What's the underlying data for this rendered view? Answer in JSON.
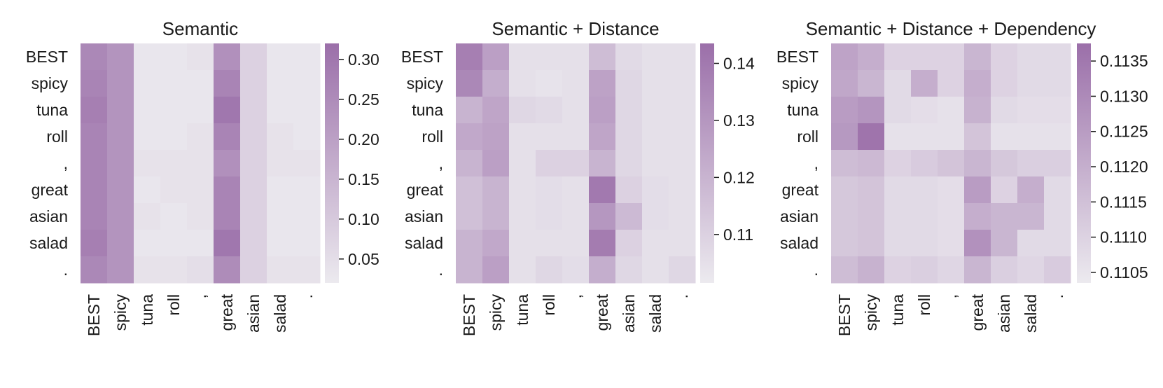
{
  "chart_data": [
    {
      "type": "heatmap",
      "title": "Semantic",
      "x_categories": [
        "BEST",
        "spicy",
        "tuna",
        "roll",
        ",",
        "great",
        "asian",
        "salad",
        "."
      ],
      "y_categories": [
        "BEST",
        "spicy",
        "tuna",
        "roll",
        ",",
        "great",
        "asian",
        "salad",
        "."
      ],
      "values": [
        [
          0.26,
          0.23,
          0.03,
          0.03,
          0.04,
          0.24,
          0.08,
          0.03,
          0.03
        ],
        [
          0.27,
          0.23,
          0.03,
          0.03,
          0.03,
          0.27,
          0.08,
          0.03,
          0.03
        ],
        [
          0.28,
          0.23,
          0.03,
          0.03,
          0.03,
          0.3,
          0.08,
          0.03,
          0.03
        ],
        [
          0.27,
          0.23,
          0.03,
          0.03,
          0.04,
          0.27,
          0.08,
          0.04,
          0.03
        ],
        [
          0.27,
          0.23,
          0.04,
          0.04,
          0.04,
          0.24,
          0.08,
          0.04,
          0.04
        ],
        [
          0.27,
          0.23,
          0.03,
          0.04,
          0.04,
          0.27,
          0.08,
          0.03,
          0.03
        ],
        [
          0.27,
          0.23,
          0.04,
          0.03,
          0.04,
          0.27,
          0.08,
          0.03,
          0.03
        ],
        [
          0.28,
          0.23,
          0.03,
          0.03,
          0.03,
          0.3,
          0.08,
          0.03,
          0.03
        ],
        [
          0.26,
          0.23,
          0.04,
          0.04,
          0.05,
          0.25,
          0.08,
          0.04,
          0.04
        ]
      ],
      "colorbar": {
        "min": 0.02,
        "max": 0.32,
        "ticks": [
          "0.05",
          "0.10",
          "0.15",
          "0.20",
          "0.25",
          "0.30"
        ]
      }
    },
    {
      "type": "heatmap",
      "title": "Semantic + Distance",
      "x_categories": [
        "BEST",
        "spicy",
        "tuna",
        "roll",
        ",",
        "great",
        "asian",
        "salad",
        "."
      ],
      "y_categories": [
        "BEST",
        "spicy",
        "tuna",
        "roll",
        ",",
        "great",
        "asian",
        "salad",
        "."
      ],
      "values": [
        [
          0.138,
          0.127,
          0.105,
          0.105,
          0.105,
          0.117,
          0.107,
          0.105,
          0.105
        ],
        [
          0.135,
          0.122,
          0.105,
          0.104,
          0.105,
          0.126,
          0.108,
          0.105,
          0.105
        ],
        [
          0.12,
          0.125,
          0.108,
          0.107,
          0.105,
          0.127,
          0.108,
          0.105,
          0.105
        ],
        [
          0.124,
          0.126,
          0.105,
          0.105,
          0.105,
          0.125,
          0.108,
          0.105,
          0.105
        ],
        [
          0.12,
          0.127,
          0.105,
          0.11,
          0.11,
          0.12,
          0.108,
          0.105,
          0.105
        ],
        [
          0.116,
          0.12,
          0.105,
          0.106,
          0.105,
          0.14,
          0.11,
          0.106,
          0.105
        ],
        [
          0.116,
          0.12,
          0.105,
          0.106,
          0.105,
          0.13,
          0.118,
          0.106,
          0.105
        ],
        [
          0.12,
          0.124,
          0.105,
          0.105,
          0.105,
          0.139,
          0.11,
          0.105,
          0.105
        ],
        [
          0.12,
          0.127,
          0.105,
          0.108,
          0.106,
          0.122,
          0.108,
          0.105,
          0.108
        ]
      ],
      "colorbar": {
        "min": 0.1015,
        "max": 0.1435,
        "ticks": [
          "0.11",
          "0.12",
          "0.13",
          "0.14"
        ]
      }
    },
    {
      "type": "heatmap",
      "title": "Semantic + Distance + Dependency",
      "x_categories": [
        "BEST",
        "spicy",
        "tuna",
        "roll",
        ",",
        "great",
        "asian",
        "salad",
        "."
      ],
      "y_categories": [
        "BEST",
        "spicy",
        "tuna",
        "roll",
        ",",
        "great",
        "asian",
        "salad",
        "."
      ],
      "values": [
        [
          0.1123,
          0.112,
          0.111,
          0.111,
          0.111,
          0.1118,
          0.111,
          0.1108,
          0.1108
        ],
        [
          0.1122,
          0.1118,
          0.1108,
          0.112,
          0.111,
          0.112,
          0.111,
          0.1108,
          0.1108
        ],
        [
          0.1125,
          0.1127,
          0.1108,
          0.1107,
          0.1106,
          0.1119,
          0.1108,
          0.1107,
          0.1107
        ],
        [
          0.1126,
          0.1136,
          0.1106,
          0.1106,
          0.1106,
          0.1114,
          0.1106,
          0.1106,
          0.1106
        ],
        [
          0.1116,
          0.1117,
          0.111,
          0.1112,
          0.1114,
          0.1118,
          0.1113,
          0.1111,
          0.1111
        ],
        [
          0.1113,
          0.1114,
          0.1108,
          0.1108,
          0.1107,
          0.1125,
          0.111,
          0.112,
          0.1108
        ],
        [
          0.1113,
          0.1114,
          0.1108,
          0.1108,
          0.1107,
          0.112,
          0.1118,
          0.1118,
          0.1108
        ],
        [
          0.1113,
          0.1114,
          0.1108,
          0.1108,
          0.1107,
          0.1128,
          0.1118,
          0.1108,
          0.1108
        ],
        [
          0.1116,
          0.1119,
          0.111,
          0.1111,
          0.1109,
          0.1118,
          0.1111,
          0.1109,
          0.1112
        ]
      ],
      "colorbar": {
        "min": 0.11035,
        "max": 0.11375,
        "ticks": [
          "0.1105",
          "0.1110",
          "0.1115",
          "0.1120",
          "0.1125",
          "0.1130",
          "0.1135"
        ]
      }
    }
  ],
  "colors": {
    "low": "#ECEAEF",
    "high": "#9B6FA9",
    "tick": "#1a1a1a"
  }
}
